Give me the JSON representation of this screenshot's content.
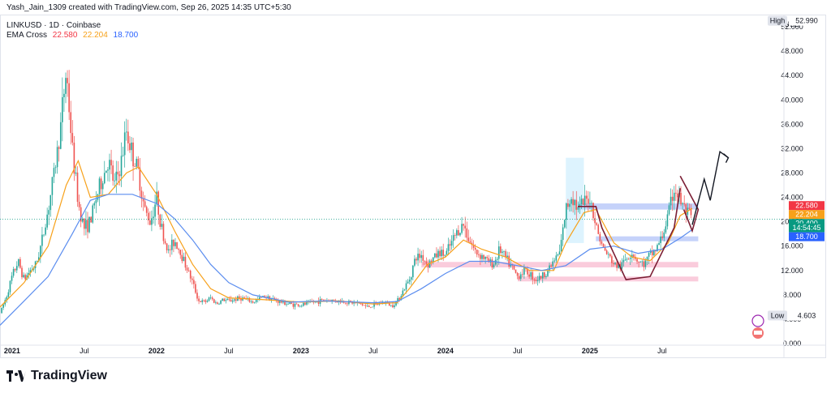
{
  "header": {
    "author_line": "Yash_Jain_1309 created with TradingView.com, Sep 26, 2025 14:35 UTC+5:30"
  },
  "symbol_line": "LINKUSD · 1D · Coinbase",
  "ema": {
    "label": "EMA Cross",
    "v1": "22.580",
    "v2": "22.204",
    "v3": "18.700"
  },
  "colors": {
    "up": "#26a69a",
    "down": "#ef5350",
    "ema_fast": "#f7a11a",
    "ema_slow": "#5b8def",
    "pattern": "#7b1e34"
  },
  "footer": {
    "brand": "TradingView"
  },
  "chart_data": {
    "type": "candlestick",
    "title": "LINKUSD · 1D · Coinbase",
    "currency": "USD",
    "ylim": [
      0,
      54
    ],
    "y_ticks": [
      "0.000",
      "4.000",
      "8.000",
      "12.000",
      "16.000",
      "20.000",
      "24.000",
      "28.000",
      "32.000",
      "36.000",
      "40.000",
      "44.000",
      "48.000",
      "52.000"
    ],
    "x_ticks": [
      "2021",
      "Jul",
      "2022",
      "Jul",
      "2023",
      "Jul",
      "2024",
      "Jul",
      "2025",
      "Jul"
    ],
    "x_tick_months": [
      0,
      6,
      12,
      18,
      24,
      30,
      36,
      42,
      48,
      54
    ],
    "x_range_months": [
      -1.0,
      62.5
    ],
    "high": {
      "label": "High",
      "value": "52.990"
    },
    "low": {
      "label": "Low",
      "value": "4.603"
    },
    "price_tags": [
      {
        "value": 22.58,
        "text": "22.580",
        "color": "#f23645"
      },
      {
        "value": 22.204,
        "text": "22.204",
        "color": "#f7a11a"
      },
      {
        "value": 20.4,
        "text": "20.400",
        "color": "#089981"
      },
      {
        "value": 20.4,
        "text": "14:54:45",
        "color": "#089981",
        "offset": 1
      },
      {
        "value": 18.7,
        "text": "18.700",
        "color": "#2962ff"
      }
    ],
    "monthly_closes": [
      [
        -1.0,
        5.0
      ],
      [
        -0.5,
        7.5
      ],
      [
        0,
        11.0
      ],
      [
        0.5,
        13.5
      ],
      [
        1,
        10.5
      ],
      [
        1.5,
        12.0
      ],
      [
        2,
        13.0
      ],
      [
        2.5,
        17.0
      ],
      [
        3,
        22.0
      ],
      [
        3.5,
        28.0
      ],
      [
        4,
        35.0
      ],
      [
        4.5,
        45.0
      ],
      [
        5,
        32.0
      ],
      [
        5.5,
        23.0
      ],
      [
        6,
        19.0
      ],
      [
        6.5,
        20.0
      ],
      [
        7,
        24.0
      ],
      [
        7.5,
        27.0
      ],
      [
        8,
        30.0
      ],
      [
        8.5,
        26.0
      ],
      [
        9,
        29.0
      ],
      [
        9.5,
        35.0
      ],
      [
        10,
        31.0
      ],
      [
        10.5,
        28.0
      ],
      [
        11,
        22.0
      ],
      [
        11.5,
        20.0
      ],
      [
        12,
        24.0
      ],
      [
        12.5,
        18.0
      ],
      [
        13,
        15.0
      ],
      [
        13.5,
        17.0
      ],
      [
        14,
        15.0
      ],
      [
        14.5,
        12.5
      ],
      [
        15,
        10.0
      ],
      [
        15.5,
        7.0
      ],
      [
        16,
        6.8
      ],
      [
        16.5,
        7.5
      ],
      [
        17,
        6.5
      ],
      [
        17.5,
        7.2
      ],
      [
        18,
        7.0
      ],
      [
        19,
        7.5
      ],
      [
        20,
        6.8
      ],
      [
        21,
        7.8
      ],
      [
        22,
        7.0
      ],
      [
        23,
        6.5
      ],
      [
        24,
        6.3
      ],
      [
        25,
        6.8
      ],
      [
        26,
        7.2
      ],
      [
        27,
        7.0
      ],
      [
        28,
        6.8
      ],
      [
        29,
        6.5
      ],
      [
        29.5,
        6.0
      ],
      [
        30,
        6.3
      ],
      [
        31,
        6.8
      ],
      [
        31.5,
        6.2
      ],
      [
        32,
        7.0
      ],
      [
        33,
        10.5
      ],
      [
        33.5,
        14.0
      ],
      [
        34,
        14.5
      ],
      [
        34.5,
        13.0
      ],
      [
        35,
        14.0
      ],
      [
        35.5,
        15.0
      ],
      [
        36,
        14.5
      ],
      [
        36.5,
        16.5
      ],
      [
        37,
        18.5
      ],
      [
        37.5,
        19.5
      ],
      [
        38,
        17.0
      ],
      [
        38.5,
        15.0
      ],
      [
        39,
        14.5
      ],
      [
        39.5,
        13.5
      ],
      [
        40,
        13.0
      ],
      [
        40.5,
        15.5
      ],
      [
        41,
        14.0
      ],
      [
        41.5,
        12.5
      ],
      [
        42,
        11.0
      ],
      [
        42.5,
        12.0
      ],
      [
        43,
        11.5
      ],
      [
        43.5,
        10.5
      ],
      [
        44,
        11.0
      ],
      [
        44.5,
        12.0
      ],
      [
        45,
        13.5
      ],
      [
        45.5,
        15.0
      ],
      [
        46,
        22.0
      ],
      [
        46.5,
        24.5
      ],
      [
        47,
        22.0
      ],
      [
        47.5,
        23.0
      ],
      [
        48,
        24.0
      ],
      [
        48.5,
        19.5
      ],
      [
        49,
        16.0
      ],
      [
        49.5,
        14.5
      ],
      [
        50,
        13.0
      ],
      [
        50.5,
        12.5
      ],
      [
        51,
        14.0
      ],
      [
        51.5,
        15.0
      ],
      [
        52,
        13.5
      ],
      [
        52.5,
        13.0
      ],
      [
        53,
        14.5
      ],
      [
        53.5,
        15.5
      ],
      [
        54,
        17.5
      ],
      [
        54.5,
        21.0
      ],
      [
        55,
        25.5
      ],
      [
        55.5,
        23.5
      ],
      [
        56,
        21.5
      ],
      [
        56.5,
        20.4
      ]
    ],
    "ema_fast": [
      [
        -1.0,
        6.0
      ],
      [
        1,
        10.0
      ],
      [
        3,
        16.0
      ],
      [
        4.5,
        26.0
      ],
      [
        5.5,
        30.0
      ],
      [
        6.5,
        24.0
      ],
      [
        8,
        24.5
      ],
      [
        9.5,
        28.0
      ],
      [
        10.5,
        29.0
      ],
      [
        12,
        24.5
      ],
      [
        13.5,
        18.5
      ],
      [
        15,
        13.0
      ],
      [
        16.5,
        9.0
      ],
      [
        18,
        7.5
      ],
      [
        21,
        7.2
      ],
      [
        24,
        6.8
      ],
      [
        27,
        7.0
      ],
      [
        30,
        6.5
      ],
      [
        32,
        6.7
      ],
      [
        33,
        9.0
      ],
      [
        34.5,
        13.0
      ],
      [
        36,
        14.2
      ],
      [
        37.5,
        17.0
      ],
      [
        39,
        15.5
      ],
      [
        41,
        14.2
      ],
      [
        43,
        12.0
      ],
      [
        45,
        12.0
      ],
      [
        46,
        16.5
      ],
      [
        47.5,
        21.5
      ],
      [
        48.5,
        22.0
      ],
      [
        50,
        16.5
      ],
      [
        51.5,
        14.2
      ],
      [
        53,
        13.6
      ],
      [
        54.5,
        16.5
      ],
      [
        55.5,
        21.0
      ],
      [
        56.5,
        22.2
      ]
    ],
    "ema_slow": [
      [
        -1.0,
        3.0
      ],
      [
        1,
        7.0
      ],
      [
        3,
        11.0
      ],
      [
        5,
        18.0
      ],
      [
        6.5,
        23.5
      ],
      [
        8,
        24.5
      ],
      [
        10,
        24.5
      ],
      [
        12,
        23.0
      ],
      [
        13.5,
        20.5
      ],
      [
        15,
        17.0
      ],
      [
        16.5,
        13.0
      ],
      [
        18,
        10.0
      ],
      [
        20,
        8.0
      ],
      [
        23,
        6.8
      ],
      [
        26,
        7.0
      ],
      [
        30,
        6.7
      ],
      [
        32,
        6.9
      ],
      [
        34,
        9.0
      ],
      [
        36,
        11.5
      ],
      [
        38,
        13.5
      ],
      [
        40,
        13.5
      ],
      [
        42,
        12.8
      ],
      [
        44,
        12.0
      ],
      [
        46,
        12.8
      ],
      [
        48,
        15.5
      ],
      [
        50,
        16.0
      ],
      [
        52,
        14.8
      ],
      [
        54,
        15.5
      ],
      [
        55.5,
        17.3
      ],
      [
        56.5,
        18.7
      ]
    ],
    "zones": [
      {
        "from": 47.0,
        "to": 57.0,
        "low": 22.0,
        "high": 23.0,
        "color": "#7f9cf5"
      },
      {
        "from": 48.5,
        "to": 57.0,
        "low": 16.8,
        "high": 17.6,
        "color": "#7f9cf5"
      },
      {
        "from": 34.0,
        "to": 57.0,
        "low": 12.5,
        "high": 13.4,
        "color": "#f48fb1"
      },
      {
        "from": 42.0,
        "to": 57.0,
        "low": 10.2,
        "high": 11.0,
        "color": "#f48fb1"
      },
      {
        "from": 46.0,
        "to": 47.5,
        "low": 16.5,
        "high": 30.5,
        "color": "#b3e5fc"
      }
    ],
    "pattern_path": [
      [
        47.0,
        22.5
      ],
      [
        48.5,
        22.5
      ],
      [
        49.0,
        19.0
      ],
      [
        51.0,
        10.5
      ],
      [
        53.0,
        11.0
      ],
      [
        55.0,
        19.0
      ],
      [
        55.5,
        25.5
      ]
    ],
    "flag_path": [
      [
        55.5,
        27.5
      ],
      [
        57.0,
        22.0
      ],
      [
        56.5,
        18.5
      ],
      [
        55.8,
        22.0
      ]
    ],
    "projection_path": [
      [
        56.5,
        19.5
      ],
      [
        57.5,
        27.0
      ],
      [
        58.0,
        23.5
      ],
      [
        58.8,
        31.5
      ],
      [
        59.5,
        30.5
      ]
    ],
    "current_price": 20.4
  }
}
